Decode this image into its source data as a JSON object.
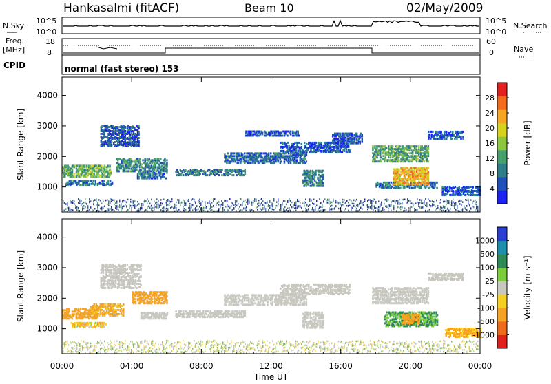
{
  "header": {
    "station": "Hankasalmi (fitACF)",
    "beam": "Beam 10",
    "date": "02/May/2009"
  },
  "left_labels": {
    "nsky": "N.Sky",
    "freq_line1": "Freq.",
    "freq_line2": "[MHz]",
    "cpid": "CPID"
  },
  "right_labels": {
    "nsearch": "N.Search",
    "nave": "Nave"
  },
  "cpid_text": "normal (fast stereo) 153",
  "noise_axis": {
    "left_ticks": [
      "10^5",
      "10^0"
    ],
    "right_ticks": [
      "10^5",
      "10^0"
    ]
  },
  "freq_axis": {
    "left_ticks": [
      "18",
      "8"
    ],
    "right_ticks": [
      "60",
      "0"
    ]
  },
  "chart_data": [
    {
      "type": "heatmap",
      "name": "power-panel",
      "ylabel": "Slant Range [km]",
      "yticks": [
        1000,
        2000,
        3000,
        4000
      ],
      "ylim": [
        180,
        4600
      ],
      "colorbar": {
        "label": "Power [dB]",
        "ticks": [
          4,
          8,
          12,
          16,
          20,
          24,
          28
        ],
        "range": [
          0,
          32
        ],
        "colors": [
          "#1b22f2",
          "#1f4fb8",
          "#2f7f8a",
          "#46a06c",
          "#8cc63f",
          "#d6d21e",
          "#f5a623",
          "#f36b1c",
          "#e4201f"
        ]
      },
      "regions": [
        {
          "t0": 0.0,
          "t1": 2.8,
          "r0": 1300,
          "r1": 1700,
          "level": 14
        },
        {
          "t0": 0.2,
          "t1": 2.9,
          "r0": 1020,
          "r1": 1160,
          "level": 8
        },
        {
          "t0": 2.2,
          "t1": 4.4,
          "r0": 2300,
          "r1": 3000,
          "level": 6
        },
        {
          "t0": 3.1,
          "t1": 6.0,
          "r0": 1480,
          "r1": 1900,
          "level": 10
        },
        {
          "t0": 4.3,
          "t1": 6.0,
          "r0": 1250,
          "r1": 1450,
          "level": 8
        },
        {
          "t0": 6.5,
          "t1": 10.5,
          "r0": 1350,
          "r1": 1560,
          "level": 9
        },
        {
          "t0": 9.3,
          "t1": 14.0,
          "r0": 1750,
          "r1": 2100,
          "level": 7
        },
        {
          "t0": 10.5,
          "t1": 13.6,
          "r0": 2650,
          "r1": 2800,
          "level": 5
        },
        {
          "t0": 12.5,
          "t1": 16.5,
          "r0": 2100,
          "r1": 2450,
          "level": 6
        },
        {
          "t0": 13.8,
          "t1": 15.0,
          "r0": 1000,
          "r1": 1500,
          "level": 9
        },
        {
          "t0": 15.5,
          "t1": 17.2,
          "r0": 2400,
          "r1": 2750,
          "level": 6
        },
        {
          "t0": 17.8,
          "t1": 21.0,
          "r0": 1800,
          "r1": 2300,
          "level": 13
        },
        {
          "t0": 18.0,
          "t1": 21.5,
          "r0": 930,
          "r1": 1150,
          "level": 8
        },
        {
          "t0": 19.0,
          "t1": 21.0,
          "r0": 1050,
          "r1": 1600,
          "level": 22
        },
        {
          "t0": 21.0,
          "t1": 23.0,
          "r0": 2550,
          "r1": 2800,
          "level": 6
        },
        {
          "t0": 21.8,
          "t1": 24.0,
          "r0": 700,
          "r1": 1000,
          "level": 6
        }
      ]
    },
    {
      "type": "heatmap",
      "name": "velocity-panel",
      "ylabel": "Slant Range [km]",
      "yticks": [
        1000,
        2000,
        3000,
        4000
      ],
      "ylim": [
        180,
        4600
      ],
      "xlabel": "Time UT",
      "xticks": [
        "00:00",
        "04:00",
        "08:00",
        "12:00",
        "16:00",
        "20:00",
        "00:00"
      ],
      "colorbar": {
        "label": "Velocity [m s⁻¹]",
        "ticks": [
          "1000",
          "500",
          "100",
          "25",
          "-25",
          "-100",
          "-500",
          "-1000"
        ],
        "colors": [
          "#2a3fd2",
          "#1f8fb0",
          "#2e8b57",
          "#7ccd3c",
          "#c8c8c0",
          "#f5d020",
          "#f6a323",
          "#ee6a1c",
          "#e0201c"
        ]
      },
      "regions": [
        {
          "t0": 0.0,
          "t1": 2.0,
          "r0": 1300,
          "r1": 1650,
          "v": -300
        },
        {
          "t0": 1.5,
          "t1": 3.5,
          "r0": 1400,
          "r1": 1800,
          "v": -150
        },
        {
          "t0": 0.5,
          "t1": 2.5,
          "r0": 1020,
          "r1": 1160,
          "v": -60
        },
        {
          "t0": 2.2,
          "t1": 4.5,
          "r0": 2300,
          "r1": 3100,
          "v": 0
        },
        {
          "t0": 4.0,
          "t1": 6.0,
          "r0": 1800,
          "r1": 2200,
          "v": -250
        },
        {
          "t0": 4.5,
          "t1": 6.0,
          "r0": 1300,
          "r1": 1500,
          "v": 0
        },
        {
          "t0": 6.5,
          "t1": 10.5,
          "r0": 1350,
          "r1": 1560,
          "v": 0
        },
        {
          "t0": 9.3,
          "t1": 14.0,
          "r0": 1750,
          "r1": 2100,
          "v": 0
        },
        {
          "t0": 12.5,
          "t1": 16.5,
          "r0": 2100,
          "r1": 2450,
          "v": 0
        },
        {
          "t0": 13.8,
          "t1": 15.0,
          "r0": 1000,
          "r1": 1500,
          "v": 0
        },
        {
          "t0": 17.8,
          "t1": 21.0,
          "r0": 1800,
          "r1": 2300,
          "v": 0
        },
        {
          "t0": 18.5,
          "t1": 21.5,
          "r0": 1050,
          "r1": 1500,
          "v": 120
        },
        {
          "t0": 19.5,
          "t1": 20.5,
          "r0": 1150,
          "r1": 1450,
          "v": -200
        },
        {
          "t0": 21.0,
          "t1": 23.0,
          "r0": 2550,
          "r1": 2800,
          "v": 0
        },
        {
          "t0": 22.0,
          "t1": 24.0,
          "r0": 700,
          "r1": 1000,
          "v": -150
        }
      ]
    }
  ]
}
